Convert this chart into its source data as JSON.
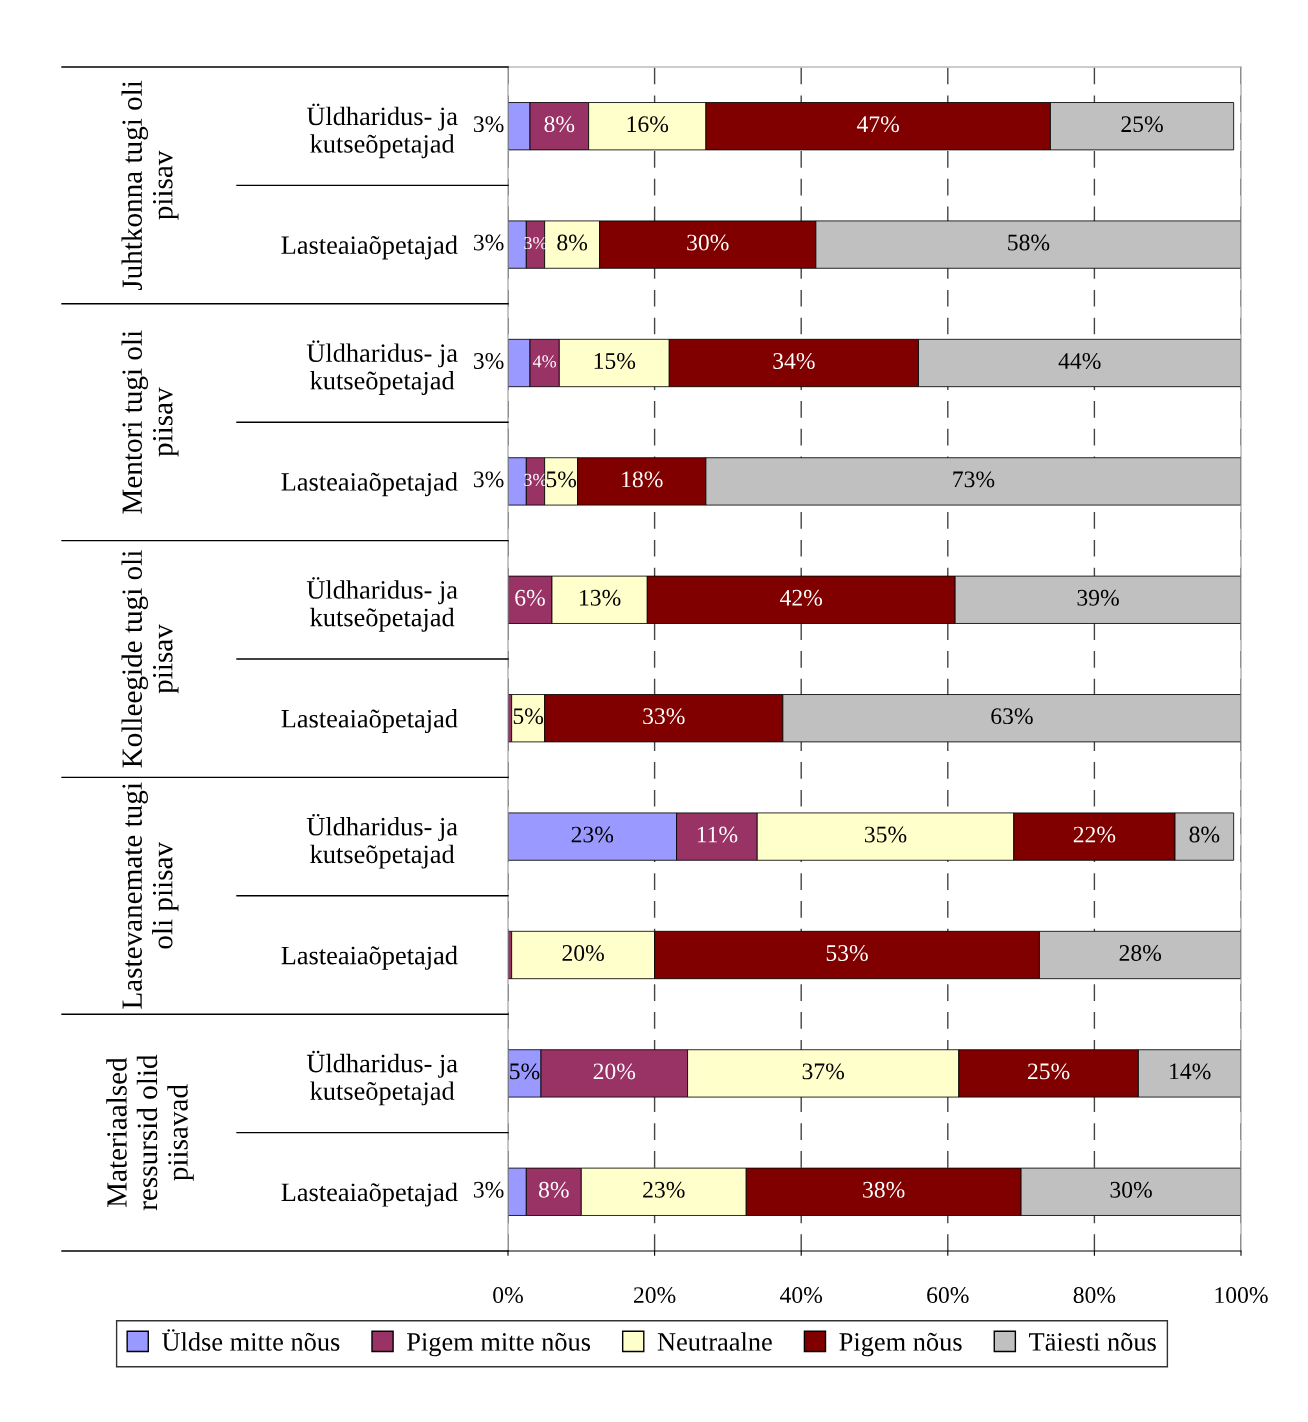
{
  "chart_data": {
    "type": "bar",
    "orientation": "horizontal",
    "stacked": true,
    "categories": [
      "Üldharidus- ja\nkutseõpetajad",
      "Lasteaiaõpetajad",
      "Üldharidus- ja\nkutseõpetajad",
      "Lasteaiaõpetajad",
      "Üldharidus- ja\nkutseõpetajad",
      "Lasteaiaõpetajad",
      "Üldharidus- ja\nkutseõpetajad",
      "Lasteaiaõpetajad",
      "Üldharidus- ja\nkutseõpetajad",
      "Lasteaiaõpetajad"
    ],
    "series": [
      {
        "name": "Üldse mitte nõus",
        "color": "#9999ff",
        "values": [
          3,
          2.5,
          3,
          2.5,
          0,
          0,
          23,
          0,
          4.5,
          2.5
        ],
        "value_labels": [
          "3%",
          "3%",
          "3%",
          "3%",
          null,
          null,
          "23%",
          null,
          "5%",
          "3%"
        ]
      },
      {
        "name": "Pigem mitte nõus",
        "color": "#993366",
        "values": [
          8,
          2.5,
          4,
          2.5,
          6,
          0.5,
          11,
          0.5,
          20,
          7.5
        ],
        "value_labels": [
          "8%",
          "3%",
          "4%",
          "3%",
          "6%",
          null,
          "11%",
          null,
          "20%",
          "8%"
        ]
      },
      {
        "name": "Neutraalne",
        "color": "#ffffcc",
        "values": [
          16,
          7.5,
          15,
          4.5,
          13,
          4.5,
          35,
          19.5,
          37,
          22.5
        ],
        "value_labels": [
          "16%",
          "8%",
          "15%",
          "5%",
          "13%",
          "5%",
          "35%",
          "20%",
          "37%",
          "23%"
        ]
      },
      {
        "name": "Pigem nõus",
        "color": "#800000",
        "values": [
          47,
          29.5,
          34,
          17.5,
          42,
          32.5,
          22,
          52.5,
          24.5,
          37.5
        ],
        "value_labels": [
          "47%",
          "30%",
          "34%",
          "18%",
          "42%",
          "33%",
          "22%",
          "53%",
          "25%",
          "38%"
        ]
      },
      {
        "name": "Täiesti nõus",
        "color": "#c0c0c0",
        "values": [
          25,
          58,
          44,
          73,
          39,
          62.5,
          8,
          27.5,
          14,
          30
        ],
        "value_labels": [
          "25%",
          "58%",
          "44%",
          "73%",
          "39%",
          "63%",
          "8%",
          "28%",
          "14%",
          "30%"
        ]
      }
    ],
    "xlim": [
      0,
      100
    ],
    "xticks": [
      {
        "value": 0,
        "label": "0%"
      },
      {
        "value": 20,
        "label": "20%"
      },
      {
        "value": 40,
        "label": "40%"
      },
      {
        "value": 60,
        "label": "60%"
      },
      {
        "value": 80,
        "label": "80%"
      },
      {
        "value": 100,
        "label": "100%"
      }
    ],
    "grid": "x",
    "legend": "bottom",
    "annotations": [
      "Juhtkonna tugi oli\npiisav",
      "Mentori tugi oli\npiisav",
      "Kolleegide tugi oli\npiisav",
      "Lastevanemate tugi\noli piisav",
      "Materiaalsed\nressursid olid\npiisavad"
    ]
  }
}
